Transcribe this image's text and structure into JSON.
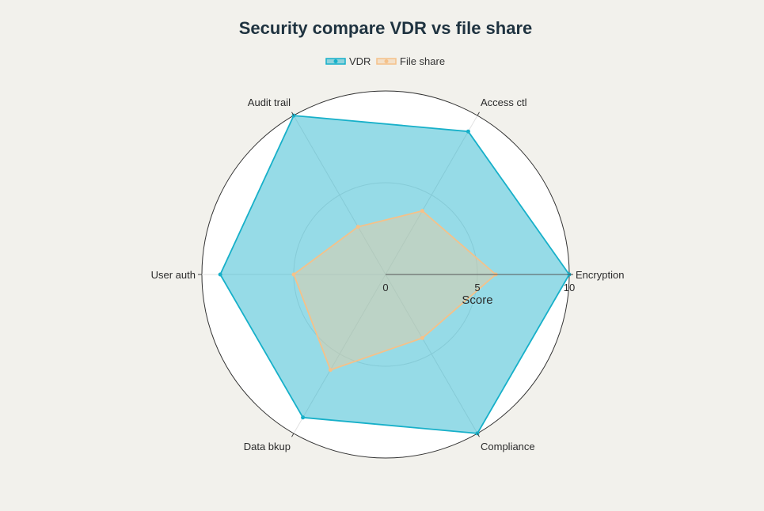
{
  "chart_data": {
    "type": "radar",
    "title": "Security compare VDR vs file share",
    "axes": [
      "Encryption",
      "Access ctl",
      "Audit trail",
      "User auth",
      "Data bkup",
      "Compliance"
    ],
    "radial_axis": {
      "title": "Score",
      "range": [
        0,
        10
      ],
      "ticks": [
        0,
        5,
        10
      ],
      "tick_labels": [
        "0",
        "5",
        "10"
      ]
    },
    "series": [
      {
        "name": "VDR",
        "values": [
          10,
          9,
          10,
          9,
          9,
          10
        ],
        "color": "#17b0c9",
        "fill": "rgba(23,176,201,0.45)"
      },
      {
        "name": "File share",
        "values": [
          6,
          4,
          3,
          5,
          6,
          4
        ],
        "color": "#f5c189",
        "fill": "rgba(245,200,150,0.4)"
      }
    ],
    "legend": "top-center",
    "grid": true
  }
}
